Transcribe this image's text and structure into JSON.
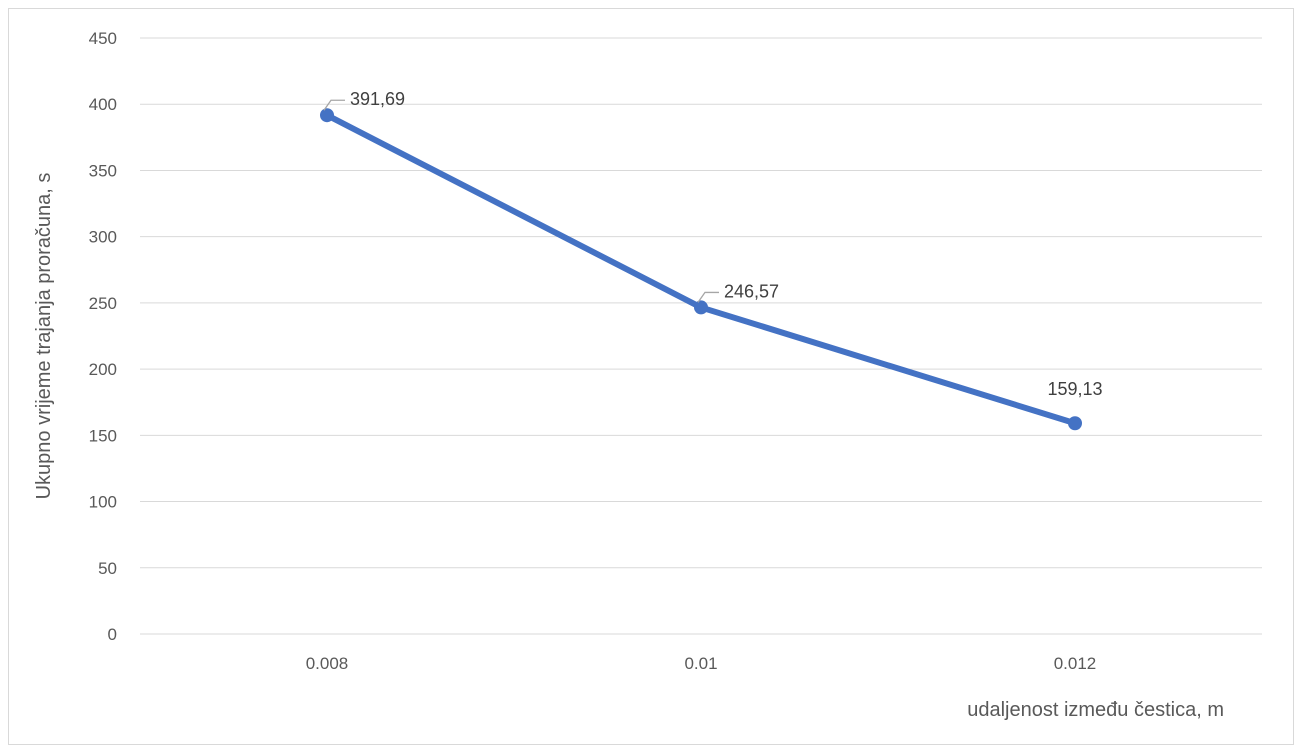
{
  "chart_data": {
    "type": "line",
    "title": "",
    "xlabel": "udaljenost između čestica, m",
    "ylabel": "Ukupno vrijeme trajanja proračuna, s",
    "categories": [
      "0.008",
      "0.01",
      "0.012"
    ],
    "series": [
      {
        "values": [
          391.69,
          246.57,
          159.13
        ],
        "data_labels": [
          "391,69",
          "246,57",
          "159,13"
        ],
        "color": "#4472c4"
      }
    ],
    "ylim": [
      0,
      450
    ],
    "yticks": [
      0,
      50,
      100,
      150,
      200,
      250,
      300,
      350,
      400,
      450
    ],
    "ytick_labels": [
      "0",
      "50",
      "100",
      "150",
      "200",
      "250",
      "300",
      "350",
      "400",
      "450"
    ],
    "grid": true,
    "legend": "none"
  },
  "colors": {
    "line": "#4472c4",
    "grid": "#d9d9d9",
    "text": "#595959",
    "label_text": "#404040",
    "leader": "#a6a6a6"
  }
}
